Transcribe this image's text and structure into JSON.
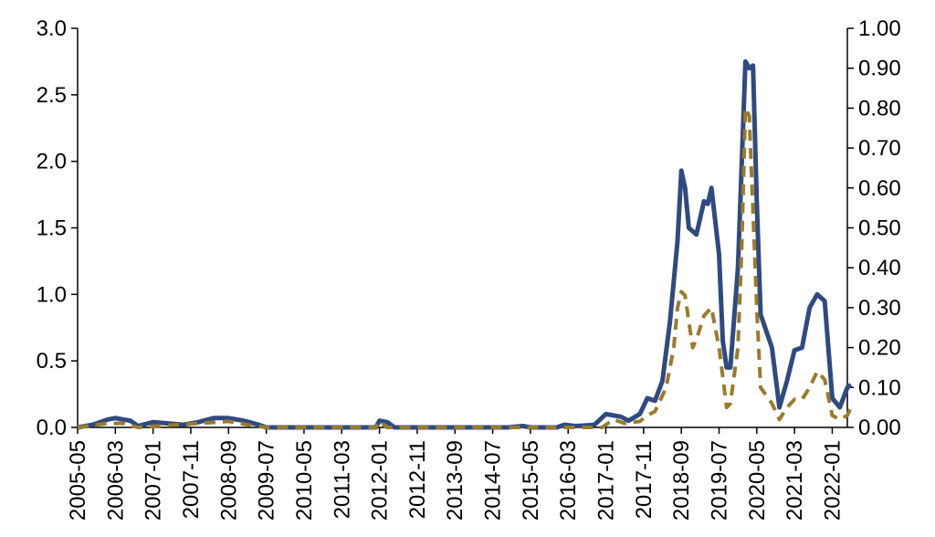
{
  "chart_data": {
    "type": "line",
    "title": "",
    "xlabel": "",
    "ylabel": "",
    "y_ticks_left": [
      "3.0",
      "2.5",
      "2.0",
      "1.5",
      "1.0",
      "0.5",
      "0.0"
    ],
    "y_ticks_right": [
      "1.00",
      "0.90",
      "0.80",
      "0.70",
      "0.60",
      "0.50",
      "0.40",
      "0.30",
      "0.20",
      "0.10",
      "0.00"
    ],
    "ylim_left": [
      0,
      3.0
    ],
    "ylim_right": [
      0,
      1.0
    ],
    "x_tick_labels": [
      "2005-05",
      "2006-03",
      "2007-01",
      "2007-11",
      "2008-09",
      "2009-07",
      "2010-05",
      "2011-03",
      "2012-01",
      "2012-11",
      "2013-09",
      "2014-07",
      "2015-05",
      "2016-03",
      "2017-01",
      "2017-11",
      "2018-09",
      "2019-07",
      "2020-05",
      "2021-03",
      "2022-01"
    ],
    "x_range": [
      "2005-05",
      "2022-05"
    ],
    "grid": false,
    "legend": "none",
    "series": [
      {
        "axis": "left",
        "color": "#2f4a80",
        "dash": "solid",
        "points": [
          [
            "2005-05",
            0.0
          ],
          [
            "2005-09",
            0.02
          ],
          [
            "2006-01",
            0.06
          ],
          [
            "2006-03",
            0.07
          ],
          [
            "2006-07",
            0.05
          ],
          [
            "2006-09",
            0.01
          ],
          [
            "2007-01",
            0.04
          ],
          [
            "2007-05",
            0.03
          ],
          [
            "2007-09",
            0.02
          ],
          [
            "2008-01",
            0.04
          ],
          [
            "2008-05",
            0.07
          ],
          [
            "2008-09",
            0.07
          ],
          [
            "2009-01",
            0.05
          ],
          [
            "2009-05",
            0.02
          ],
          [
            "2009-07",
            0.0
          ],
          [
            "2011-12",
            0.0
          ],
          [
            "2012-01",
            0.05
          ],
          [
            "2012-03",
            0.04
          ],
          [
            "2012-05",
            0.0
          ],
          [
            "2014-11",
            0.0
          ],
          [
            "2015-03",
            0.01
          ],
          [
            "2015-05",
            0.0
          ],
          [
            "2015-12",
            0.0
          ],
          [
            "2016-02",
            0.02
          ],
          [
            "2016-05",
            0.01
          ],
          [
            "2016-10",
            0.02
          ],
          [
            "2017-01",
            0.1
          ],
          [
            "2017-05",
            0.08
          ],
          [
            "2017-07",
            0.05
          ],
          [
            "2017-10",
            0.1
          ],
          [
            "2017-12",
            0.22
          ],
          [
            "2018-02",
            0.2
          ],
          [
            "2018-04",
            0.35
          ],
          [
            "2018-06",
            0.8
          ],
          [
            "2018-08",
            1.4
          ],
          [
            "2018-09",
            1.93
          ],
          [
            "2018-10",
            1.8
          ],
          [
            "2018-11",
            1.5
          ],
          [
            "2019-01",
            1.45
          ],
          [
            "2019-03",
            1.7
          ],
          [
            "2019-04",
            1.68
          ],
          [
            "2019-05",
            1.8
          ],
          [
            "2019-07",
            1.3
          ],
          [
            "2019-08",
            0.65
          ],
          [
            "2019-09",
            0.45
          ],
          [
            "2019-10",
            0.45
          ],
          [
            "2019-12",
            1.2
          ],
          [
            "2020-02",
            2.75
          ],
          [
            "2020-03",
            2.7
          ],
          [
            "2020-04",
            2.72
          ],
          [
            "2020-05",
            1.7
          ],
          [
            "2020-06",
            0.85
          ],
          [
            "2020-09",
            0.6
          ],
          [
            "2020-11",
            0.15
          ],
          [
            "2021-01",
            0.35
          ],
          [
            "2021-03",
            0.58
          ],
          [
            "2021-05",
            0.6
          ],
          [
            "2021-07",
            0.9
          ],
          [
            "2021-09",
            1.0
          ],
          [
            "2021-11",
            0.95
          ],
          [
            "2022-01",
            0.22
          ],
          [
            "2022-03",
            0.15
          ],
          [
            "2022-05",
            0.3
          ],
          [
            "2022-06",
            0.32
          ]
        ]
      },
      {
        "axis": "right",
        "color": "#9a7b2b",
        "dash": "dashed",
        "points": [
          [
            "2005-05",
            0.0
          ],
          [
            "2006-01",
            0.01
          ],
          [
            "2006-05",
            0.01
          ],
          [
            "2006-09",
            0.0
          ],
          [
            "2008-01",
            0.01
          ],
          [
            "2008-09",
            0.015
          ],
          [
            "2009-03",
            0.005
          ],
          [
            "2009-07",
            0.0
          ],
          [
            "2011-12",
            0.0
          ],
          [
            "2012-01",
            0.015
          ],
          [
            "2012-03",
            0.0
          ],
          [
            "2016-12",
            0.0
          ],
          [
            "2017-03",
            0.02
          ],
          [
            "2017-06",
            0.01
          ],
          [
            "2017-10",
            0.015
          ],
          [
            "2017-12",
            0.03
          ],
          [
            "2018-02",
            0.04
          ],
          [
            "2018-05",
            0.1
          ],
          [
            "2018-07",
            0.2
          ],
          [
            "2018-08",
            0.3
          ],
          [
            "2018-09",
            0.34
          ],
          [
            "2018-10",
            0.33
          ],
          [
            "2018-12",
            0.2
          ],
          [
            "2019-01",
            0.22
          ],
          [
            "2019-03",
            0.28
          ],
          [
            "2019-05",
            0.3
          ],
          [
            "2019-07",
            0.2
          ],
          [
            "2019-09",
            0.05
          ],
          [
            "2019-10",
            0.06
          ],
          [
            "2019-12",
            0.2
          ],
          [
            "2020-01",
            0.45
          ],
          [
            "2020-02",
            0.8
          ],
          [
            "2020-03",
            0.78
          ],
          [
            "2020-05",
            0.3
          ],
          [
            "2020-06",
            0.1
          ],
          [
            "2020-09",
            0.06
          ],
          [
            "2020-11",
            0.02
          ],
          [
            "2021-01",
            0.05
          ],
          [
            "2021-03",
            0.07
          ],
          [
            "2021-05",
            0.07
          ],
          [
            "2021-07",
            0.1
          ],
          [
            "2021-09",
            0.14
          ],
          [
            "2021-11",
            0.12
          ],
          [
            "2022-01",
            0.03
          ],
          [
            "2022-03",
            0.02
          ],
          [
            "2022-05",
            0.03
          ],
          [
            "2022-06",
            0.05
          ]
        ]
      }
    ]
  }
}
